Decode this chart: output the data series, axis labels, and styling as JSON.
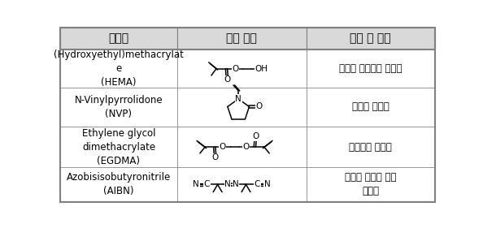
{
  "header": [
    "반응물",
    "화학 구조",
    "역할 및 특성"
  ],
  "rows": [
    {
      "name": "(Hydroxyethyl)methacrylat\ne\n(HEMA)",
      "role": "친수성 아크릴계 단량체"
    },
    {
      "name": "N-Vinylpyrrolidone\n(NVP)",
      "role": "친수성 단량체"
    },
    {
      "name": "Ethylene glycol\ndimethacrylate\n(EGDMA)",
      "role": "아크릴계 가교제"
    },
    {
      "name": "Azobisisobutyronitrile\n(AIBN)",
      "role": "라디칼 중합을 위한\n개시제"
    }
  ],
  "header_bg": "#d9d9d9",
  "cell_bg": "#ffffff",
  "border_color": "#808080",
  "text_color": "#000000",
  "header_fontsize": 10,
  "cell_fontsize": 8.5,
  "struct_fontsize": 7.5
}
